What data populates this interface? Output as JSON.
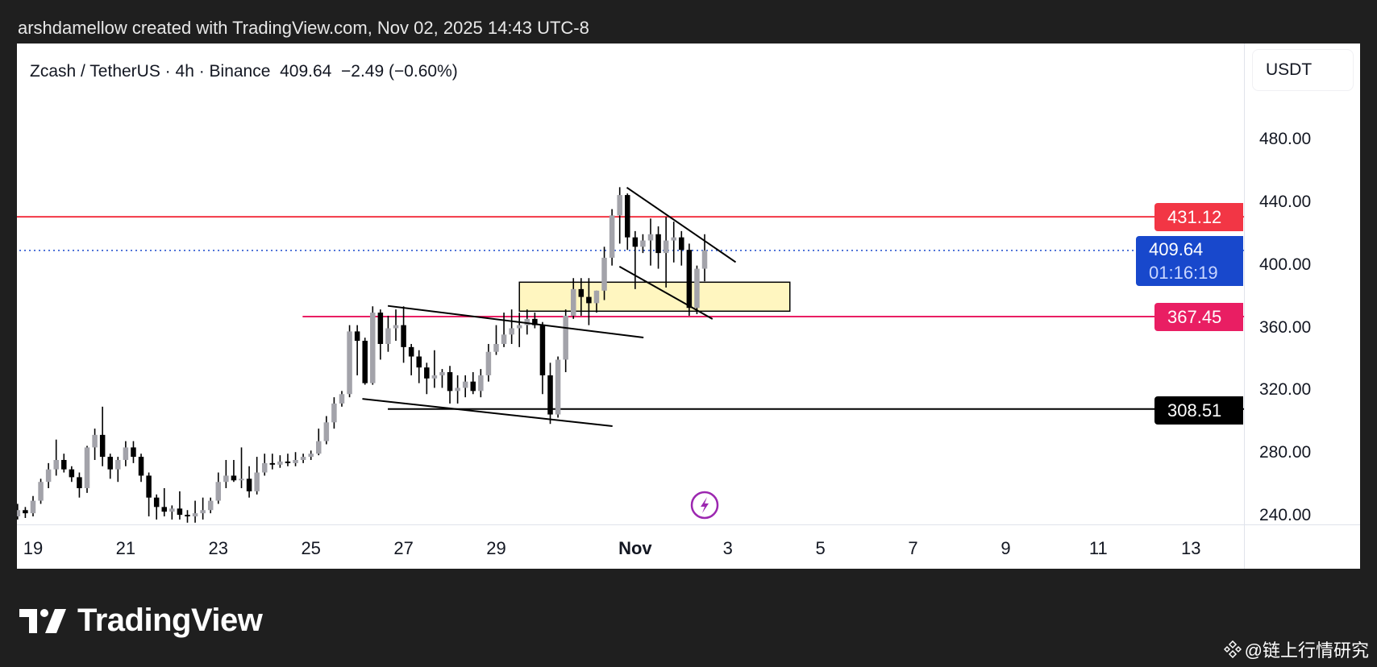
{
  "caption": "arshdamellow created with TradingView.com, Nov 02, 2025 14:43 UTC-8",
  "legend": {
    "symbol": "Zcash / TetherUS · 4h · Binance",
    "price": "409.64",
    "change": "−2.49 (−0.60%)"
  },
  "currency": "USDT",
  "price_ticks": [
    "480.00",
    "440.00",
    "400.00",
    "360.00",
    "320.00",
    "280.00",
    "240.00"
  ],
  "badges": {
    "resistance": "431.12",
    "current": "409.64",
    "countdown": "01:16:19",
    "support": "367.45",
    "base": "308.51"
  },
  "time_ticks": [
    {
      "label": "19",
      "day": 19
    },
    {
      "label": "21",
      "day": 21
    },
    {
      "label": "23",
      "day": 23
    },
    {
      "label": "25",
      "day": 25
    },
    {
      "label": "27",
      "day": 27
    },
    {
      "label": "29",
      "day": 29
    },
    {
      "label": "Nov",
      "day": 32,
      "bold": true
    },
    {
      "label": "3",
      "day": 34
    },
    {
      "label": "5",
      "day": 36
    },
    {
      "label": "7",
      "day": 38
    },
    {
      "label": "9",
      "day": 40
    },
    {
      "label": "11",
      "day": 42
    },
    {
      "label": "13",
      "day": 44
    }
  ],
  "colors": {
    "up": "#a3a3aa",
    "down": "#000000",
    "resistance": "#f23645",
    "support": "#e91e63",
    "current": "#1848cc",
    "zone": "#fff6c0",
    "event": "#9c27b0"
  },
  "logo": "TradingView",
  "watermark": "@链上行情研究",
  "chart_data": {
    "type": "candlestick",
    "title": "Zcash / TetherUS · 4h · Binance",
    "ylabel": "USDT",
    "ylim": [
      240,
      480
    ],
    "x_unit": "day (Oct, >31 = Nov)",
    "last_candle_day": 33.5,
    "candle_interval_days": 0.16667,
    "ohlc": [
      [
        236,
        242,
        234,
        240
      ],
      [
        240,
        248,
        238,
        244
      ],
      [
        244,
        246,
        239,
        242
      ],
      [
        242,
        253,
        240,
        250
      ],
      [
        250,
        264,
        248,
        262
      ],
      [
        262,
        274,
        258,
        270
      ],
      [
        270,
        289,
        266,
        276
      ],
      [
        276,
        280,
        268,
        270
      ],
      [
        270,
        272,
        262,
        265
      ],
      [
        265,
        268,
        252,
        258
      ],
      [
        258,
        285,
        255,
        284
      ],
      [
        284,
        296,
        276,
        292
      ],
      [
        292,
        310,
        272,
        278
      ],
      [
        278,
        280,
        264,
        270
      ],
      [
        270,
        278,
        262,
        276
      ],
      [
        276,
        288,
        272,
        284
      ],
      [
        284,
        288,
        274,
        278
      ],
      [
        278,
        280,
        262,
        266
      ],
      [
        266,
        268,
        240,
        252
      ],
      [
        252,
        254,
        238,
        246
      ],
      [
        246,
        258,
        240,
        243
      ],
      [
        243,
        247,
        238,
        245
      ],
      [
        245,
        256,
        238,
        241
      ],
      [
        241,
        244,
        236,
        240
      ],
      [
        240,
        250,
        236,
        242
      ],
      [
        242,
        252,
        238,
        244
      ],
      [
        244,
        252,
        242,
        250
      ],
      [
        250,
        268,
        248,
        262
      ],
      [
        262,
        276,
        258,
        266
      ],
      [
        266,
        276,
        262,
        263
      ],
      [
        263,
        284,
        258,
        264
      ],
      [
        264,
        272,
        252,
        256
      ],
      [
        256,
        278,
        254,
        268
      ],
      [
        268,
        280,
        266,
        274
      ],
      [
        274,
        280,
        270,
        273
      ],
      [
        273,
        279,
        271,
        275
      ],
      [
        275,
        280,
        272,
        274
      ],
      [
        274,
        281,
        272,
        276
      ],
      [
        276,
        280,
        274,
        278
      ],
      [
        278,
        282,
        276,
        280
      ],
      [
        280,
        296,
        279,
        288
      ],
      [
        288,
        304,
        286,
        300
      ],
      [
        300,
        316,
        296,
        312
      ],
      [
        312,
        320,
        310,
        318
      ],
      [
        318,
        362,
        316,
        358
      ],
      [
        358,
        362,
        330,
        352
      ],
      [
        352,
        354,
        324,
        325
      ],
      [
        325,
        374,
        324,
        370
      ],
      [
        370,
        372,
        340,
        350
      ],
      [
        350,
        368,
        345,
        360
      ],
      [
        360,
        372,
        352,
        362
      ],
      [
        362,
        374,
        338,
        348
      ],
      [
        348,
        350,
        330,
        342
      ],
      [
        342,
        346,
        325,
        335
      ],
      [
        335,
        338,
        318,
        328
      ],
      [
        328,
        346,
        322,
        330
      ],
      [
        330,
        334,
        322,
        332
      ],
      [
        332,
        336,
        312,
        320
      ],
      [
        320,
        330,
        312,
        322
      ],
      [
        322,
        330,
        316,
        326
      ],
      [
        326,
        332,
        318,
        320
      ],
      [
        320,
        334,
        316,
        330
      ],
      [
        330,
        350,
        326,
        345
      ],
      [
        345,
        362,
        343,
        350
      ],
      [
        350,
        370,
        348,
        356
      ],
      [
        356,
        372,
        350,
        360
      ],
      [
        360,
        370,
        348,
        362
      ],
      [
        362,
        372,
        356,
        366
      ],
      [
        366,
        370,
        360,
        362
      ],
      [
        362,
        364,
        318,
        330
      ],
      [
        330,
        338,
        299,
        305
      ],
      [
        305,
        342,
        303,
        340
      ],
      [
        340,
        372,
        332,
        368
      ],
      [
        368,
        392,
        366,
        385
      ],
      [
        385,
        392,
        368,
        380
      ],
      [
        380,
        392,
        362,
        376
      ],
      [
        376,
        384,
        370,
        384
      ],
      [
        384,
        412,
        378,
        405
      ],
      [
        405,
        436,
        400,
        432
      ],
      [
        432,
        450,
        414,
        445
      ],
      [
        445,
        446,
        410,
        418
      ],
      [
        418,
        422,
        385,
        412
      ],
      [
        412,
        420,
        408,
        416
      ],
      [
        416,
        430,
        400,
        420
      ],
      [
        420,
        425,
        398,
        408
      ],
      [
        408,
        431,
        386,
        416
      ],
      [
        416,
        428,
        402,
        418
      ],
      [
        418,
        422,
        400,
        410
      ],
      [
        410,
        414,
        368,
        373
      ],
      [
        373,
        400,
        369,
        398
      ],
      [
        398,
        420,
        390,
        409.64
      ]
    ],
    "hlines": [
      {
        "name": "resistance-line",
        "price": 431.12,
        "from_day": 18.6,
        "color": "#f23645",
        "style": "solid"
      },
      {
        "name": "current-price-line",
        "price": 409.64,
        "from_day": 18.6,
        "color": "#1848cc",
        "style": "dotted"
      },
      {
        "name": "support-line",
        "price": 367.45,
        "from_day": 24.82,
        "color": "#e91e63",
        "style": "solid"
      },
      {
        "name": "base-line",
        "price": 308.51,
        "from_day": 26.66,
        "color": "#000000",
        "style": "solid"
      }
    ],
    "trendlines": [
      {
        "name": "channel-upper-line",
        "p1": [
          26.66,
          374.3
        ],
        "p2": [
          32.18,
          354.1
        ]
      },
      {
        "name": "channel-lower-line",
        "p1": [
          26.11,
          315.0
        ],
        "p2": [
          31.51,
          297.6
        ]
      },
      {
        "name": "wedge-upper-line",
        "p1": [
          31.82,
          449.8
        ],
        "p2": [
          34.17,
          402.2
        ]
      },
      {
        "name": "wedge-lower-line",
        "p1": [
          31.66,
          399.4
        ],
        "p2": [
          33.67,
          365.9
        ]
      }
    ],
    "zone": {
      "from_day": 29.5,
      "to_day": 35.34,
      "top": 389.4,
      "bottom": 370.9
    },
    "event_marker_day": 33.5
  }
}
